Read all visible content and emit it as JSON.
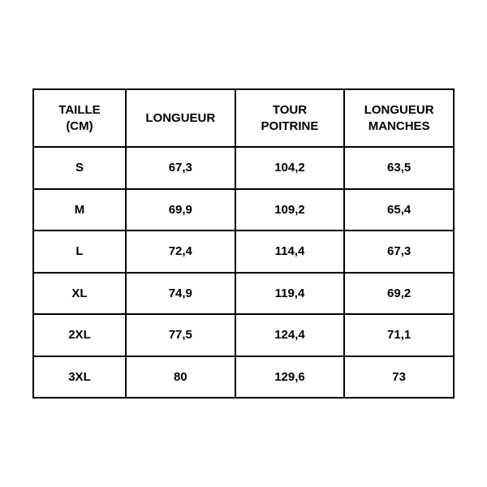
{
  "table": {
    "type": "table",
    "columns": [
      {
        "label": "TAILLE\n(CM)"
      },
      {
        "label": "LONGUEUR"
      },
      {
        "label": "TOUR\nPOITRINE"
      },
      {
        "label": "LONGUEUR\nMANCHES"
      }
    ],
    "rows": [
      [
        "S",
        "67,3",
        "104,2",
        "63,5"
      ],
      [
        "M",
        "69,9",
        "109,2",
        "65,4"
      ],
      [
        "L",
        "72,4",
        "114,4",
        "67,3"
      ],
      [
        "XL",
        "74,9",
        "119,4",
        "69,2"
      ],
      [
        "2XL",
        "77,5",
        "124,4",
        "71,1"
      ],
      [
        "3XL",
        "80",
        "129,6",
        "73"
      ]
    ],
    "border_color": "#000000",
    "background_color": "#ffffff",
    "text_color": "#000000",
    "header_fontsize": 15,
    "cell_fontsize": 15,
    "font_weight": 700
  }
}
